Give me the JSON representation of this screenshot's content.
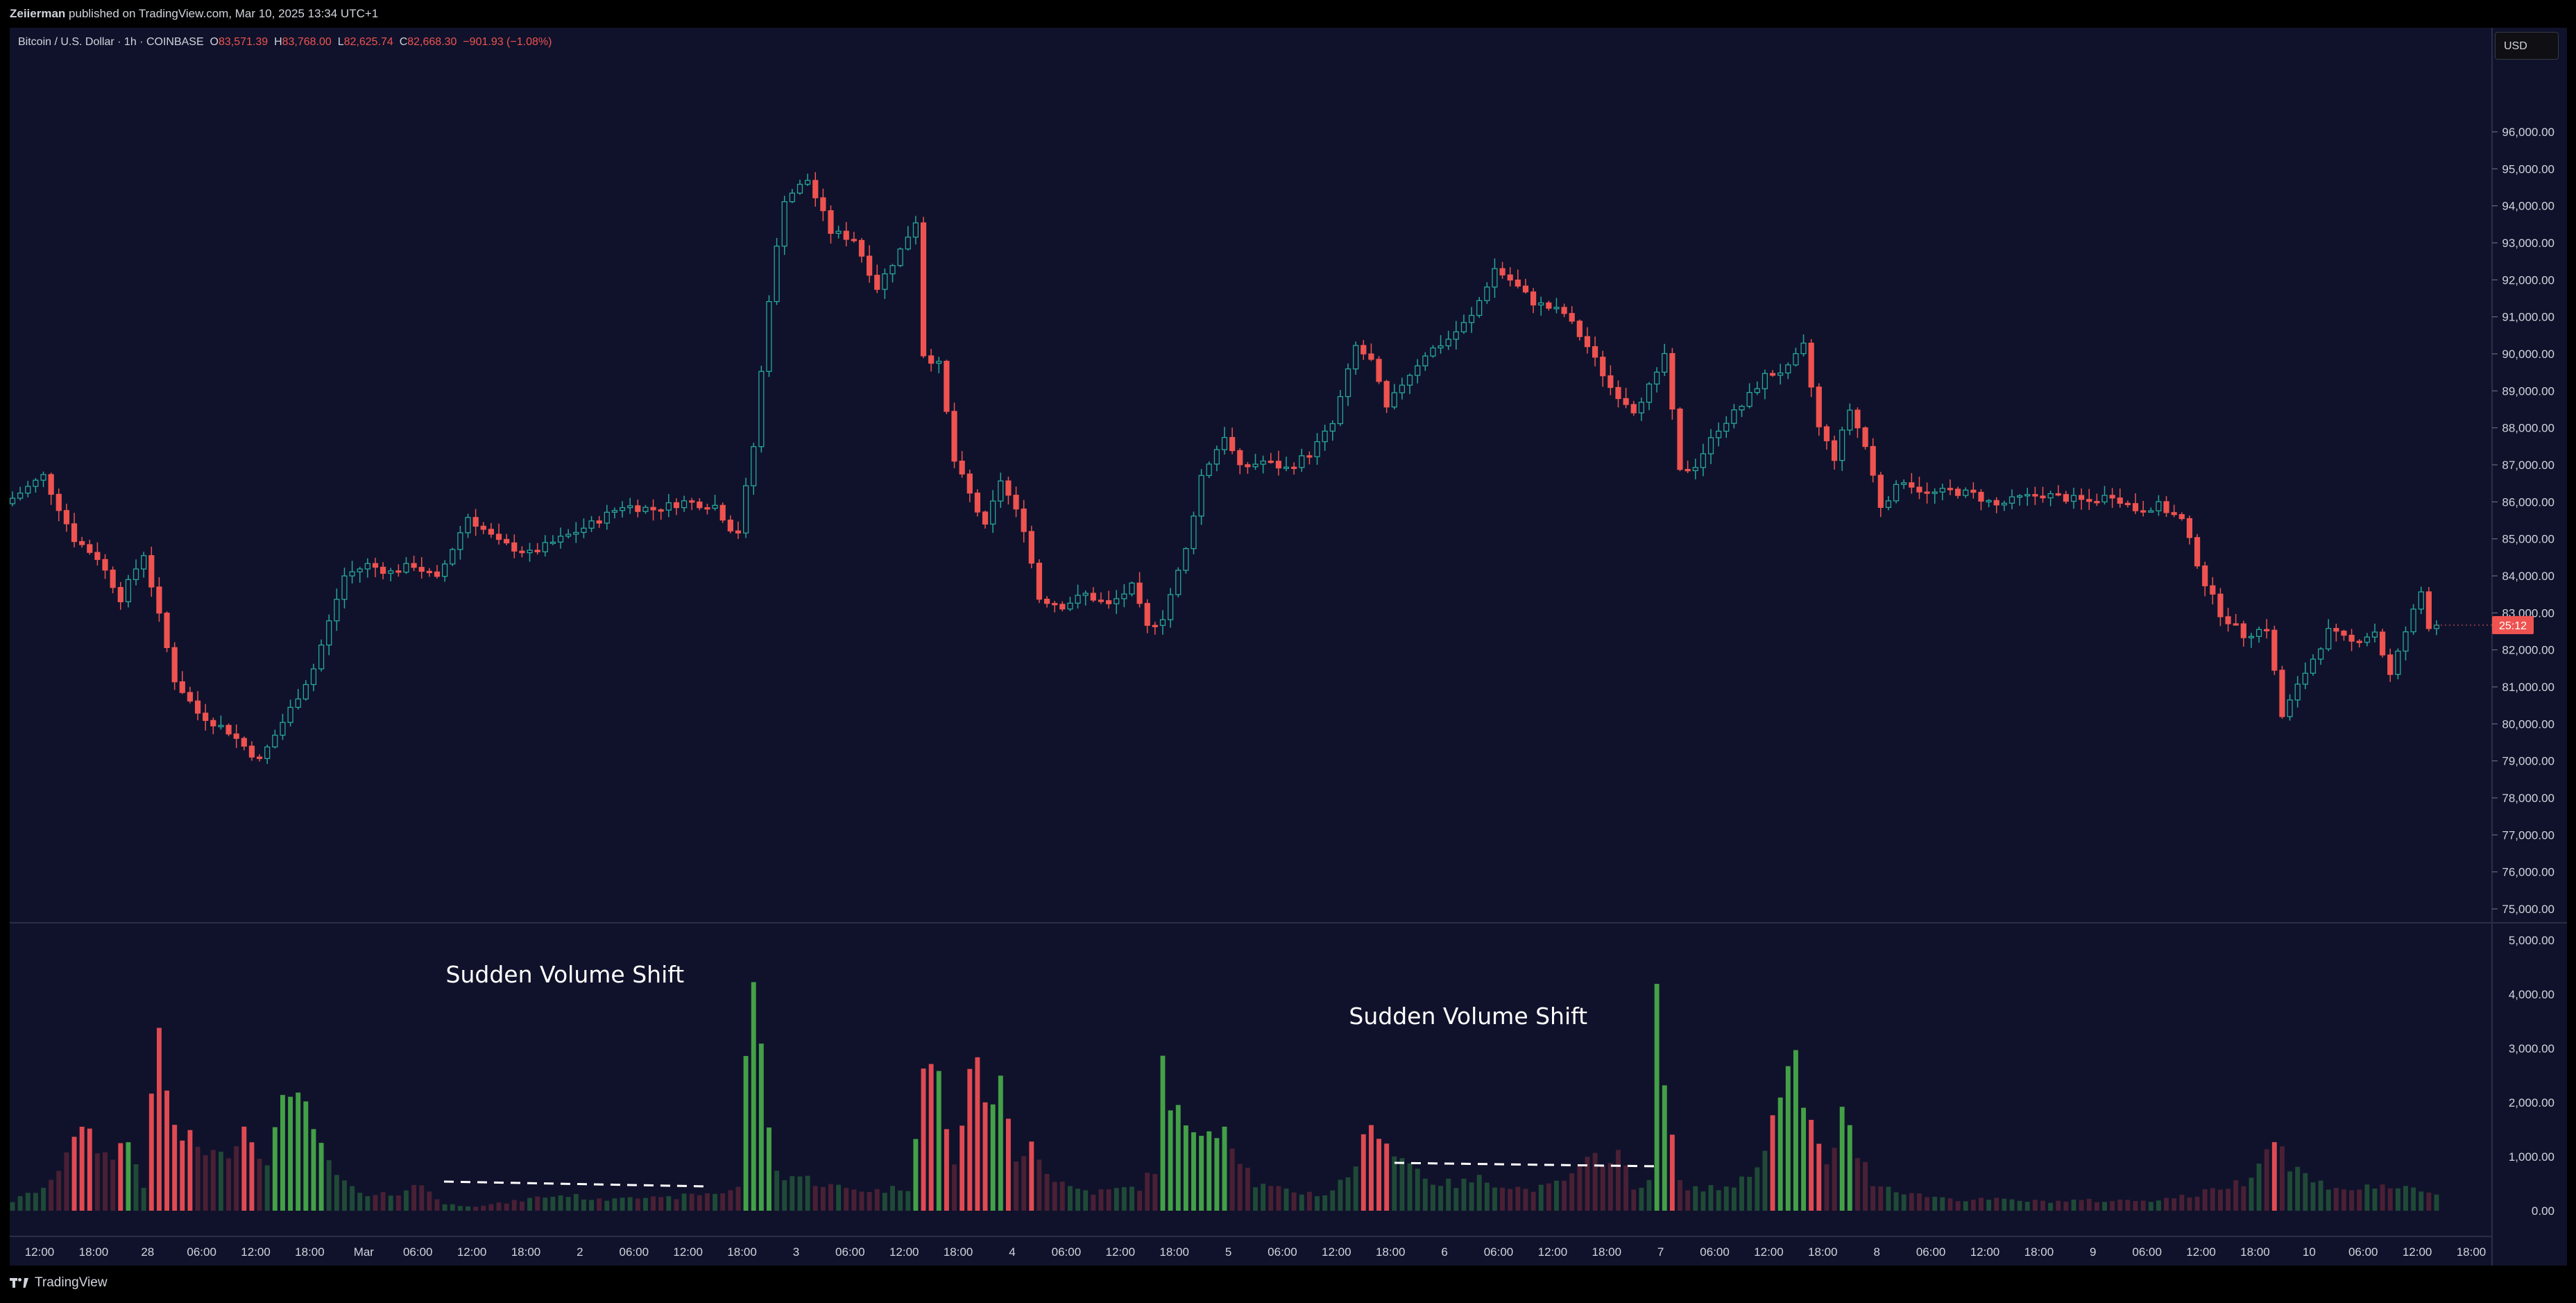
{
  "header": {
    "publisher": "Zeiierman",
    "published_text": " published on TradingView.com, Mar 10, 2025 13:34 UTC+1"
  },
  "legend": {
    "symbol": "Bitcoin / U.S. Dollar · 1h · COINBASE",
    "o_label": "O",
    "o_value": "83,571.39",
    "h_label": "H",
    "h_value": "83,768.00",
    "l_label": "L",
    "l_value": "82,625.74",
    "c_label": "C",
    "c_value": "82,668.30",
    "change": "−901.93 (−1.08%)"
  },
  "currency_button": "USD",
  "countdown": "25:12",
  "footer": {
    "brand": "TradingView"
  },
  "colors": {
    "up": "#26a69a",
    "down": "#ef5350",
    "vol_up": "#43a047",
    "vol_down": "#e04a52",
    "background": "#10122b"
  },
  "chart_data": {
    "type": "candlestick",
    "price_axis": {
      "ticks": [
        "75,000.00",
        "76,000.00",
        "77,000.00",
        "78,000.00",
        "79,000.00",
        "80,000.00",
        "81,000.00",
        "82,000.00",
        "83,000.00",
        "84,000.00",
        "85,000.00",
        "86,000.00",
        "87,000.00",
        "88,000.00",
        "89,000.00",
        "90,000.00",
        "91,000.00",
        "92,000.00",
        "93,000.00",
        "94,000.00",
        "95,000.00",
        "96,000.00"
      ],
      "range": [
        74700,
        96900
      ]
    },
    "volume_axis": {
      "ticks": [
        "0.00",
        "1,000.00",
        "2,000.00",
        "3,000.00",
        "4,000.00",
        "5,000.00"
      ],
      "range": [
        0,
        5000
      ]
    },
    "time_axis": {
      "labels": [
        "12:00",
        "18:00",
        "28",
        "06:00",
        "12:00",
        "18:00",
        "Mar",
        "06:00",
        "12:00",
        "18:00",
        "2",
        "06:00",
        "12:00",
        "18:00",
        "3",
        "06:00",
        "12:00",
        "18:00",
        "4",
        "06:00",
        "12:00",
        "18:00",
        "5",
        "06:00",
        "12:00",
        "18:00",
        "6",
        "06:00",
        "12:00",
        "18:00",
        "7",
        "06:00",
        "12:00",
        "18:00",
        "8",
        "06:00",
        "12:00",
        "18:00",
        "9",
        "06:00",
        "12:00",
        "18:00",
        "10",
        "06:00",
        "12:00",
        "18:00"
      ]
    },
    "price_path": [
      [
        0,
        85950
      ],
      [
        5,
        86700
      ],
      [
        9,
        85000
      ],
      [
        12,
        84500
      ],
      [
        15,
        83400
      ],
      [
        18,
        84600
      ],
      [
        22,
        81200
      ],
      [
        25,
        80300
      ],
      [
        29,
        79800
      ],
      [
        33,
        79000
      ],
      [
        37,
        80400
      ],
      [
        40,
        81500
      ],
      [
        44,
        84000
      ],
      [
        47,
        84300
      ],
      [
        50,
        84100
      ],
      [
        53,
        84300
      ],
      [
        56,
        83900
      ],
      [
        60,
        85600
      ],
      [
        64,
        84900
      ],
      [
        68,
        84600
      ],
      [
        72,
        85000
      ],
      [
        76,
        85400
      ],
      [
        80,
        85900
      ],
      [
        84,
        85800
      ],
      [
        88,
        86000
      ],
      [
        92,
        85900
      ],
      [
        94,
        85300
      ],
      [
        95,
        85200
      ],
      [
        97,
        87500
      ],
      [
        99,
        91500
      ],
      [
        101,
        94200
      ],
      [
        104,
        94700
      ],
      [
        107,
        93300
      ],
      [
        110,
        93100
      ],
      [
        113,
        91800
      ],
      [
        116,
        92800
      ],
      [
        118,
        93600
      ],
      [
        119,
        90000
      ],
      [
        121,
        89700
      ],
      [
        123,
        87100
      ],
      [
        125,
        86200
      ],
      [
        127,
        85300
      ],
      [
        129,
        86600
      ],
      [
        132,
        85300
      ],
      [
        134,
        83400
      ],
      [
        137,
        83200
      ],
      [
        140,
        83500
      ],
      [
        143,
        83200
      ],
      [
        146,
        83700
      ],
      [
        148,
        82600
      ],
      [
        150,
        82900
      ],
      [
        153,
        84700
      ],
      [
        155,
        86700
      ],
      [
        158,
        87800
      ],
      [
        160,
        86900
      ],
      [
        163,
        87100
      ],
      [
        166,
        86900
      ],
      [
        169,
        87300
      ],
      [
        172,
        88100
      ],
      [
        175,
        90200
      ],
      [
        177,
        89800
      ],
      [
        179,
        88500
      ],
      [
        181,
        89200
      ],
      [
        184,
        90000
      ],
      [
        187,
        90400
      ],
      [
        190,
        91000
      ],
      [
        193,
        92300
      ],
      [
        195,
        92000
      ],
      [
        198,
        91400
      ],
      [
        202,
        91100
      ],
      [
        205,
        90200
      ],
      [
        208,
        89100
      ],
      [
        211,
        88500
      ],
      [
        214,
        89400
      ],
      [
        215,
        90000
      ],
      [
        217,
        86800
      ],
      [
        219,
        87000
      ],
      [
        222,
        88000
      ],
      [
        225,
        88600
      ],
      [
        228,
        89400
      ],
      [
        231,
        89600
      ],
      [
        233,
        90200
      ],
      [
        235,
        88000
      ],
      [
        237,
        87200
      ],
      [
        239,
        88500
      ],
      [
        241,
        87500
      ],
      [
        243,
        85900
      ],
      [
        246,
        86600
      ],
      [
        249,
        86200
      ],
      [
        252,
        86300
      ],
      [
        255,
        86200
      ],
      [
        258,
        85900
      ],
      [
        261,
        86100
      ],
      [
        264,
        86200
      ],
      [
        267,
        86100
      ],
      [
        270,
        86000
      ],
      [
        273,
        86200
      ],
      [
        276,
        85800
      ],
      [
        279,
        85900
      ],
      [
        282,
        85500
      ],
      [
        285,
        83800
      ],
      [
        287,
        83000
      ],
      [
        290,
        82400
      ],
      [
        293,
        82600
      ],
      [
        295,
        80200
      ],
      [
        298,
        81400
      ],
      [
        301,
        82500
      ],
      [
        304,
        82200
      ],
      [
        307,
        82500
      ],
      [
        309,
        81300
      ],
      [
        311,
        82500
      ],
      [
        313,
        83570
      ],
      [
        314,
        82668
      ]
    ],
    "volume_profile": [
      [
        0,
        180
      ],
      [
        5,
        500
      ],
      [
        8,
        1550
      ],
      [
        10,
        1350
      ],
      [
        12,
        1050
      ],
      [
        15,
        1300
      ],
      [
        17,
        500
      ],
      [
        19,
        3300
      ],
      [
        21,
        1500
      ],
      [
        23,
        1300
      ],
      [
        27,
        1000
      ],
      [
        30,
        1600
      ],
      [
        33,
        1000
      ],
      [
        35,
        1900
      ],
      [
        37,
        2650
      ],
      [
        39,
        1350
      ],
      [
        41,
        900
      ],
      [
        43,
        500
      ],
      [
        46,
        250
      ],
      [
        50,
        350
      ],
      [
        53,
        500
      ],
      [
        56,
        120
      ],
      [
        60,
        90
      ],
      [
        64,
        150
      ],
      [
        68,
        250
      ],
      [
        72,
        300
      ],
      [
        76,
        200
      ],
      [
        80,
        300
      ],
      [
        84,
        220
      ],
      [
        88,
        300
      ],
      [
        92,
        350
      ],
      [
        94,
        450
      ],
      [
        95,
        2700
      ],
      [
        96,
        4750
      ],
      [
        97,
        2800
      ],
      [
        99,
        700
      ],
      [
        102,
        650
      ],
      [
        105,
        500
      ],
      [
        108,
        420
      ],
      [
        112,
        380
      ],
      [
        116,
        450
      ],
      [
        118,
        2700
      ],
      [
        120,
        2500
      ],
      [
        122,
        800
      ],
      [
        124,
        2850
      ],
      [
        126,
        2200
      ],
      [
        128,
        2300
      ],
      [
        130,
        900
      ],
      [
        132,
        1500
      ],
      [
        134,
        700
      ],
      [
        137,
        450
      ],
      [
        140,
        350
      ],
      [
        143,
        400
      ],
      [
        146,
        450
      ],
      [
        148,
        800
      ],
      [
        149,
        2650
      ],
      [
        151,
        1800
      ],
      [
        153,
        1300
      ],
      [
        155,
        1700
      ],
      [
        157,
        1650
      ],
      [
        159,
        1050
      ],
      [
        161,
        500
      ],
      [
        164,
        400
      ],
      [
        167,
        350
      ],
      [
        170,
        300
      ],
      [
        173,
        650
      ],
      [
        175,
        1250
      ],
      [
        177,
        1650
      ],
      [
        179,
        1100
      ],
      [
        181,
        900
      ],
      [
        184,
        550
      ],
      [
        187,
        500
      ],
      [
        190,
        600
      ],
      [
        193,
        500
      ],
      [
        196,
        400
      ],
      [
        199,
        450
      ],
      [
        202,
        650
      ],
      [
        205,
        1000
      ],
      [
        208,
        1100
      ],
      [
        210,
        400
      ],
      [
        212,
        650
      ],
      [
        213,
        3750
      ],
      [
        214,
        2300
      ],
      [
        216,
        500
      ],
      [
        219,
        400
      ],
      [
        222,
        450
      ],
      [
        225,
        650
      ],
      [
        227,
        1300
      ],
      [
        229,
        2100
      ],
      [
        231,
        2700
      ],
      [
        233,
        1600
      ],
      [
        235,
        800
      ],
      [
        237,
        1800
      ],
      [
        239,
        1100
      ],
      [
        241,
        550
      ],
      [
        244,
        400
      ],
      [
        247,
        300
      ],
      [
        250,
        250
      ],
      [
        253,
        200
      ],
      [
        256,
        220
      ],
      [
        259,
        200
      ],
      [
        262,
        180
      ],
      [
        265,
        180
      ],
      [
        268,
        200
      ],
      [
        271,
        180
      ],
      [
        274,
        200
      ],
      [
        277,
        200
      ],
      [
        280,
        250
      ],
      [
        283,
        300
      ],
      [
        286,
        450
      ],
      [
        289,
        550
      ],
      [
        293,
        1400
      ],
      [
        295,
        900
      ],
      [
        298,
        550
      ],
      [
        301,
        450
      ],
      [
        304,
        400
      ],
      [
        307,
        500
      ],
      [
        310,
        400
      ],
      [
        312,
        350
      ],
      [
        314,
        300
      ]
    ],
    "annotations": [
      {
        "text": "Sudden Volume Shift",
        "bar_index": 96
      },
      {
        "text": "Sudden Volume Shift",
        "bar_index": 213
      }
    ],
    "bar_count": 315
  }
}
